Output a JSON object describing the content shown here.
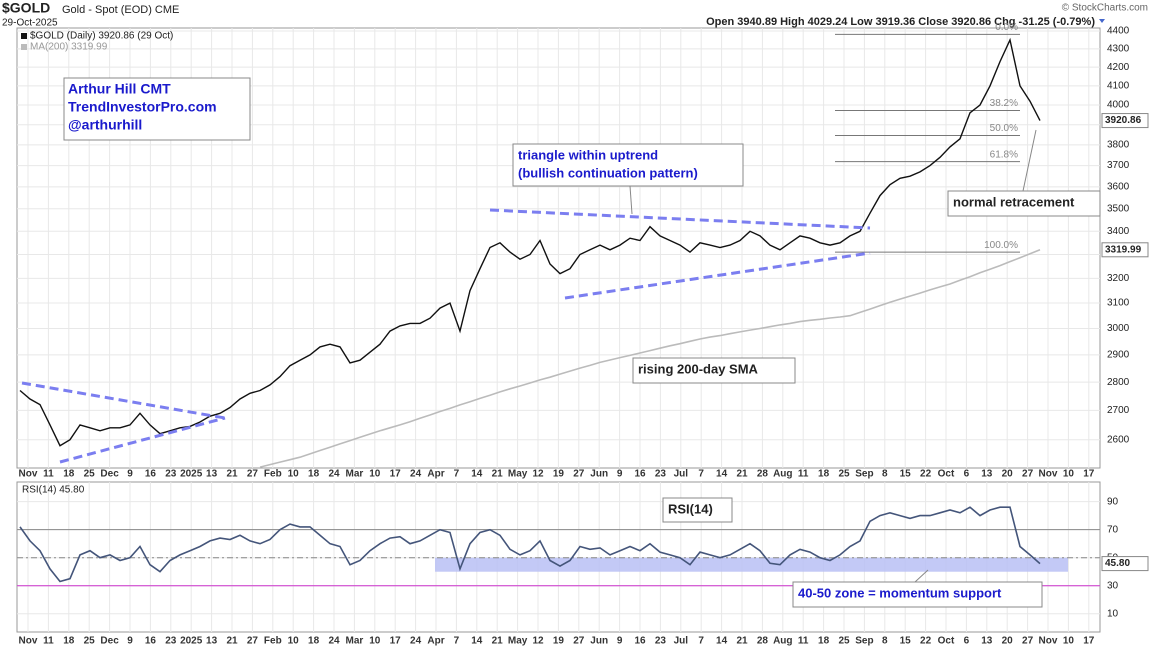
{
  "header": {
    "symbol": "$GOLD",
    "name": "Gold - Spot (EOD) CME",
    "date": "29-Oct-2025",
    "quote": "Open 3940.89 High 4029.24 Low 3919.36 Close 3920.86 Chg -31.25 (-0.79%)",
    "copyright": "© StockCharts.com"
  },
  "chart_data": [
    {
      "type": "line",
      "log": true,
      "grid": true,
      "legend": [
        "$GOLD (Daily) 3920.86 (29 Oct)",
        "MA(200) 3319.99"
      ],
      "ylim": [
        2507,
        4417
      ],
      "yticks": [
        2600,
        2700,
        2800,
        2900,
        3000,
        3100,
        3200,
        3300,
        3400,
        3500,
        3600,
        3700,
        3800,
        3900,
        4000,
        4100,
        4200,
        4300,
        4400
      ],
      "x_labels": [
        "Nov",
        "11",
        "18",
        "25",
        "Dec",
        "9",
        "16",
        "23",
        "2025",
        "13",
        "21",
        "27",
        "Feb",
        "10",
        "18",
        "24",
        "Mar",
        "10",
        "17",
        "24",
        "Apr",
        "7",
        "14",
        "21",
        "May",
        "12",
        "19",
        "27",
        "Jun",
        "9",
        "16",
        "23",
        "Jul",
        "7",
        "14",
        "21",
        "28",
        "Aug",
        "11",
        "18",
        "25",
        "Sep",
        "8",
        "15",
        "22",
        "Oct",
        "6",
        "13",
        "20",
        "27",
        "Nov",
        "10",
        "17"
      ],
      "series": [
        {
          "color": "#111111",
          "last_label": "3920.86",
          "values": [
            2770,
            2740,
            2720,
            2650,
            2580,
            2600,
            2650,
            2640,
            2630,
            2640,
            2640,
            2650,
            2690,
            2650,
            2620,
            2630,
            2640,
            2645,
            2660,
            2680,
            2690,
            2710,
            2740,
            2760,
            2770,
            2790,
            2820,
            2860,
            2880,
            2900,
            2930,
            2940,
            2930,
            2870,
            2880,
            2910,
            2940,
            2990,
            3010,
            3020,
            3020,
            3040,
            3080,
            3100,
            2990,
            3150,
            3240,
            3330,
            3350,
            3310,
            3280,
            3300,
            3360,
            3260,
            3220,
            3240,
            3300,
            3320,
            3340,
            3320,
            3340,
            3370,
            3360,
            3420,
            3380,
            3360,
            3340,
            3310,
            3350,
            3340,
            3330,
            3340,
            3360,
            3400,
            3380,
            3340,
            3320,
            3350,
            3380,
            3370,
            3350,
            3340,
            3350,
            3380,
            3400,
            3480,
            3560,
            3610,
            3640,
            3650,
            3670,
            3700,
            3740,
            3790,
            3830,
            3960,
            4000,
            4100,
            4230,
            4350,
            4100,
            4020,
            3920.86
          ]
        },
        {
          "color": "#bbbbbb",
          "last_label": "3319.99",
          "values": [
            null,
            null,
            null,
            null,
            null,
            null,
            null,
            null,
            null,
            null,
            null,
            null,
            null,
            null,
            null,
            null,
            null,
            null,
            null,
            null,
            null,
            null,
            null,
            null,
            2510,
            2518,
            2526,
            2534,
            2542,
            2553,
            2564,
            2575,
            2586,
            2597,
            2608,
            2619,
            2630,
            2640,
            2650,
            2661,
            2673,
            2684,
            2696,
            2707,
            2719,
            2730,
            2742,
            2753,
            2765,
            2776,
            2786,
            2797,
            2808,
            2818,
            2829,
            2840,
            2851,
            2861,
            2872,
            2881,
            2890,
            2898,
            2907,
            2916,
            2925,
            2934,
            2942,
            2951,
            2960,
            2967,
            2973,
            2980,
            2987,
            2994,
            3000,
            3007,
            3014,
            3020,
            3027,
            3032,
            3036,
            3041,
            3045,
            3050,
            3063,
            3076,
            3090,
            3103,
            3116,
            3128,
            3140,
            3153,
            3165,
            3177,
            3192,
            3207,
            3223,
            3238,
            3253,
            3270,
            3286,
            3303,
            3319.99
          ]
        }
      ],
      "fib_levels": [
        {
          "label": "0.0%",
          "value": 4381
        },
        {
          "label": "38.2%",
          "value": 3972
        },
        {
          "label": "50.0%",
          "value": 3846
        },
        {
          "label": "61.8%",
          "value": 3719
        },
        {
          "label": "100.0%",
          "value": 3310
        }
      ],
      "credit": [
        "Arthur Hill CMT",
        "TrendInvestorPro.com",
        "@arthurhill"
      ],
      "annotations": [
        "triangle within uptrend",
        "(bullish continuation pattern)",
        "normal retracement",
        "rising 200-day SMA"
      ]
    },
    {
      "type": "line",
      "grid": true,
      "legend": [
        "RSI(14) 45.80"
      ],
      "ylim": [
        -3,
        104
      ],
      "yticks": [
        10,
        30,
        50,
        70,
        90
      ],
      "series": [
        {
          "color": "#44557a",
          "last_label": "45.80",
          "values": [
            72,
            62,
            55,
            42,
            33,
            35,
            52,
            55,
            50,
            52,
            48,
            50,
            58,
            45,
            40,
            48,
            52,
            55,
            58,
            62,
            64,
            63,
            66,
            62,
            60,
            63,
            70,
            74,
            72,
            72,
            66,
            60,
            58,
            45,
            48,
            55,
            60,
            64,
            65,
            60,
            62,
            66,
            70,
            68,
            42,
            60,
            68,
            70,
            66,
            56,
            52,
            55,
            62,
            48,
            44,
            48,
            58,
            56,
            57,
            52,
            55,
            58,
            55,
            60,
            54,
            52,
            50,
            45,
            54,
            52,
            50,
            52,
            56,
            60,
            55,
            46,
            45,
            52,
            56,
            54,
            50,
            48,
            52,
            58,
            62,
            76,
            80,
            82,
            80,
            78,
            80,
            80,
            82,
            84,
            82,
            86,
            80,
            84,
            86,
            86,
            58,
            52,
            45.8
          ]
        }
      ],
      "reference_lines": [
        {
          "value": 70,
          "color": "#888888"
        },
        {
          "value": 50,
          "color": "#888888",
          "dash": true
        },
        {
          "value": 30,
          "color": "#cc33cc"
        }
      ],
      "zone": [
        40,
        50
      ],
      "zone_color": "#b8c0f4",
      "annotations": [
        "RSI(14)",
        "40-50 zone = momentum support"
      ]
    }
  ]
}
